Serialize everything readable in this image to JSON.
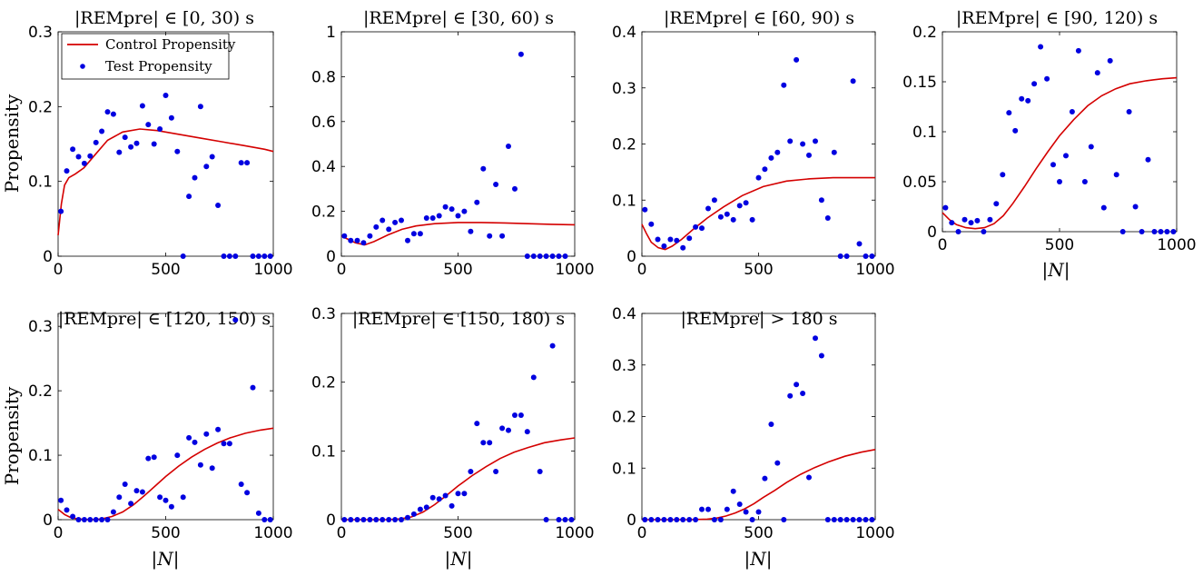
{
  "figure": {
    "colors": {
      "control": "#d40000",
      "test": "#0000e0"
    },
    "legend": {
      "control_label": "Control Propensity",
      "test_label": "Test Propensity",
      "placement": "top-left of first panel"
    }
  },
  "chart_data": [
    {
      "type": "scatter+line",
      "title": "|REMpre| ∈ [0, 30) s",
      "xlabel": "",
      "ylabel": "Propensity",
      "xlim": [
        0,
        1000
      ],
      "ylim": [
        0,
        0.3
      ],
      "xticks": [
        0,
        500,
        1000
      ],
      "yticks": [
        0,
        0.1,
        0.2,
        0.3
      ],
      "ytick_labels": [
        "0",
        "0.1",
        "0.2",
        "0.3"
      ],
      "test_x": [
        13,
        40,
        68,
        95,
        122,
        149,
        176,
        203,
        230,
        257,
        284,
        311,
        338,
        365,
        392,
        419,
        446,
        473,
        500,
        527,
        554,
        581,
        608,
        635,
        662,
        689,
        716,
        743,
        770,
        797,
        824,
        851,
        878,
        905,
        932,
        959,
        986
      ],
      "test_y": [
        0.06,
        0.114,
        0.143,
        0.133,
        0.124,
        0.134,
        0.152,
        0.167,
        0.193,
        0.19,
        0.139,
        0.159,
        0.146,
        0.151,
        0.201,
        0.176,
        0.15,
        0.17,
        0.215,
        0.185,
        0.14,
        0,
        0.08,
        0.105,
        0.2,
        0.12,
        0.133,
        0.068,
        0,
        0,
        0,
        0.125,
        0.125,
        0,
        0,
        0,
        0
      ],
      "test_x_trim": [
        13,
        40,
        68,
        95,
        122,
        149,
        176,
        203,
        230,
        257,
        284,
        311,
        338,
        365,
        392,
        419,
        446,
        473,
        500,
        527,
        554,
        581,
        608,
        635,
        662,
        689,
        716,
        743,
        770,
        797,
        824,
        851,
        878
      ],
      "control_x": [
        0,
        15,
        30,
        50,
        80,
        120,
        170,
        230,
        300,
        380,
        460,
        560,
        660,
        760,
        860,
        960,
        1000
      ],
      "control_y": [
        0.028,
        0.07,
        0.095,
        0.105,
        0.11,
        0.118,
        0.135,
        0.155,
        0.166,
        0.17,
        0.168,
        0.163,
        0.158,
        0.153,
        0.148,
        0.143,
        0.14
      ]
    },
    {
      "type": "scatter+line",
      "title": "|REMpre| ∈ [30, 60) s",
      "xlabel": "",
      "ylabel": "",
      "xlim": [
        0,
        1000
      ],
      "ylim": [
        0,
        1
      ],
      "xticks": [
        0,
        500,
        1000
      ],
      "yticks": [
        0,
        0.2,
        0.4,
        0.6,
        0.8,
        1
      ],
      "ytick_labels": [
        "0",
        "0.2",
        "0.4",
        "0.6",
        "0.8",
        "1"
      ],
      "test_x": [
        13,
        40,
        68,
        95,
        122,
        149,
        176,
        203,
        230,
        257,
        284,
        311,
        338,
        365,
        392,
        419,
        446,
        473,
        500,
        527,
        554,
        581,
        608,
        635,
        662,
        689,
        716,
        743,
        770,
        797,
        824,
        851,
        878,
        905,
        932,
        959
      ],
      "test_y": [
        0.09,
        0.07,
        0.07,
        0.06,
        0.09,
        0.13,
        0.16,
        0.12,
        0.15,
        0.16,
        0.07,
        0.1,
        0.1,
        0.17,
        0.17,
        0.18,
        0.22,
        0.21,
        0.18,
        0.2,
        0.11,
        0.24,
        0.39,
        0.09,
        0.32,
        0.09,
        0.49,
        0.3,
        0.9,
        0,
        0,
        0,
        0,
        0,
        0,
        0
      ],
      "control_x": [
        0,
        30,
        60,
        100,
        140,
        200,
        260,
        320,
        400,
        500,
        600,
        700,
        800,
        900,
        1000
      ],
      "control_y": [
        0.09,
        0.075,
        0.06,
        0.05,
        0.065,
        0.095,
        0.12,
        0.135,
        0.145,
        0.15,
        0.15,
        0.148,
        0.145,
        0.142,
        0.14
      ]
    },
    {
      "type": "scatter+line",
      "title": "|REMpre| ∈ [60, 90) s",
      "xlabel": "",
      "ylabel": "",
      "xlim": [
        0,
        1000
      ],
      "ylim": [
        0,
        0.4
      ],
      "xticks": [
        0,
        500,
        1000
      ],
      "yticks": [
        0,
        0.1,
        0.2,
        0.3,
        0.4
      ],
      "ytick_labels": [
        "0",
        "0.1",
        "0.2",
        "0.3",
        "0.4"
      ],
      "test_x": [
        13,
        40,
        68,
        95,
        122,
        149,
        176,
        203,
        230,
        257,
        284,
        311,
        338,
        365,
        392,
        419,
        446,
        473,
        500,
        527,
        554,
        581,
        608,
        635,
        662,
        689,
        716,
        743,
        770,
        797,
        824,
        851,
        878,
        905,
        932,
        959,
        986
      ],
      "test_y": [
        0.083,
        0.057,
        0.03,
        0.018,
        0.03,
        0.028,
        0.015,
        0.032,
        0.052,
        0.05,
        0.085,
        0.1,
        0.07,
        0.075,
        0.065,
        0.09,
        0.095,
        0.065,
        0.14,
        0.155,
        0.175,
        0.185,
        0.305,
        0.205,
        0.35,
        0.2,
        0.18,
        0.205,
        0.1,
        0.068,
        0.185,
        0,
        0,
        0.312,
        0.022,
        0,
        0
      ],
      "control_x": [
        0,
        20,
        40,
        70,
        100,
        130,
        170,
        220,
        280,
        350,
        430,
        520,
        620,
        720,
        820,
        920,
        1000
      ],
      "control_y": [
        0.057,
        0.04,
        0.025,
        0.015,
        0.012,
        0.018,
        0.03,
        0.048,
        0.068,
        0.088,
        0.108,
        0.124,
        0.134,
        0.138,
        0.14,
        0.14,
        0.14
      ]
    },
    {
      "type": "scatter+line",
      "title": "|REMpre| ∈ [90, 120) s",
      "xlabel": "|N|",
      "ylabel": "",
      "xlim": [
        0,
        1000
      ],
      "ylim": [
        0,
        0.2
      ],
      "xticks": [
        0,
        500,
        1000
      ],
      "yticks": [
        0,
        0.05,
        0.1,
        0.15,
        0.2
      ],
      "ytick_labels": [
        "0",
        "0.05",
        "0.1",
        "0.15",
        "0.2"
      ],
      "test_x": [
        13,
        40,
        68,
        95,
        122,
        149,
        176,
        203,
        230,
        257,
        284,
        311,
        338,
        365,
        392,
        419,
        446,
        473,
        500,
        527,
        554,
        581,
        608,
        635,
        662,
        689,
        716,
        743,
        770,
        797,
        824,
        851,
        878,
        905,
        932,
        959,
        986
      ],
      "test_y": [
        0.024,
        0.009,
        0,
        0.012,
        0.009,
        0.011,
        0,
        0.012,
        0.028,
        0.057,
        0.119,
        0.101,
        0.133,
        0.131,
        0.148,
        0.185,
        0.153,
        0.067,
        0.05,
        0.076,
        0.12,
        0.181,
        0.05,
        0.085,
        0.159,
        0.024,
        0.171,
        0.057,
        0,
        0.12,
        0.025,
        0,
        0.072,
        0,
        0,
        0,
        0
      ],
      "control_x": [
        0,
        30,
        60,
        100,
        140,
        180,
        220,
        260,
        300,
        350,
        400,
        450,
        500,
        560,
        620,
        680,
        740,
        800,
        870,
        940,
        1000
      ],
      "control_y": [
        0.019,
        0.012,
        0.007,
        0.004,
        0.003,
        0.004,
        0.008,
        0.016,
        0.028,
        0.045,
        0.063,
        0.08,
        0.096,
        0.112,
        0.126,
        0.136,
        0.143,
        0.148,
        0.151,
        0.153,
        0.154
      ]
    },
    {
      "type": "scatter+line",
      "title": "|REMpre| ∈ [120, 150) s",
      "xlabel": "|N|",
      "ylabel": "Propensity",
      "xlim": [
        0,
        1000
      ],
      "ylim": [
        0,
        0.32
      ],
      "xticks": [
        0,
        500,
        1000
      ],
      "yticks": [
        0,
        0.1,
        0.2,
        0.3
      ],
      "ytick_labels": [
        "0",
        "0.1",
        "0.2",
        "0.3"
      ],
      "test_x": [
        13,
        40,
        68,
        95,
        122,
        149,
        176,
        203,
        230,
        257,
        284,
        311,
        338,
        365,
        392,
        419,
        446,
        473,
        500,
        527,
        554,
        581,
        608,
        635,
        662,
        689,
        716,
        743,
        770,
        797,
        824,
        851,
        878,
        905,
        932,
        959,
        986
      ],
      "test_y": [
        0.03,
        0.015,
        0.005,
        0,
        0,
        0,
        0,
        0,
        0,
        0.012,
        0.035,
        0.055,
        0.025,
        0.045,
        0.043,
        0.095,
        0.097,
        0.035,
        0.03,
        0.02,
        0.1,
        0.035,
        0.127,
        0.12,
        0.085,
        0.133,
        0.08,
        0.14,
        0.118,
        0.118,
        0.31,
        0.055,
        0.042,
        0.205,
        0.01,
        0,
        0
      ],
      "control_x": [
        0,
        30,
        60,
        100,
        150,
        200,
        250,
        300,
        350,
        400,
        450,
        500,
        560,
        620,
        680,
        740,
        800,
        870,
        940,
        1000
      ],
      "control_y": [
        0.016,
        0.008,
        0.003,
        0.001,
        0,
        0.001,
        0.005,
        0.012,
        0.023,
        0.037,
        0.052,
        0.067,
        0.083,
        0.097,
        0.109,
        0.119,
        0.127,
        0.134,
        0.139,
        0.142
      ]
    },
    {
      "type": "scatter+line",
      "title": "|REMpre| ∈ [150, 180) s",
      "xlabel": "|N|",
      "ylabel": "",
      "xlim": [
        0,
        1000
      ],
      "ylim": [
        0,
        0.3
      ],
      "xticks": [
        0,
        500,
        1000
      ],
      "yticks": [
        0,
        0.1,
        0.2,
        0.3
      ],
      "ytick_labels": [
        "0",
        "0.1",
        "0.2",
        "0.3"
      ],
      "test_x": [
        13,
        40,
        68,
        95,
        122,
        149,
        176,
        203,
        230,
        257,
        284,
        311,
        338,
        365,
        392,
        419,
        446,
        473,
        500,
        527,
        554,
        581,
        608,
        635,
        662,
        689,
        716,
        743,
        770,
        797,
        824,
        851,
        878,
        905,
        932,
        959,
        986
      ],
      "test_y": [
        0,
        0,
        0,
        0,
        0,
        0,
        0,
        0,
        0,
        0,
        0.003,
        0.008,
        0.015,
        0.018,
        0.032,
        0.03,
        0.035,
        0.02,
        0.038,
        0.038,
        0.07,
        0.14,
        0.112,
        0.112,
        0.07,
        0.133,
        0.13,
        0.152,
        0.152,
        0.128,
        0.207,
        0.07,
        0,
        0.253,
        0,
        0,
        0
      ],
      "control_x": [
        0,
        100,
        200,
        250,
        300,
        350,
        400,
        450,
        500,
        560,
        620,
        680,
        740,
        800,
        870,
        940,
        1000
      ],
      "control_y": [
        0,
        0,
        0,
        0.001,
        0.004,
        0.011,
        0.022,
        0.035,
        0.049,
        0.064,
        0.077,
        0.089,
        0.098,
        0.105,
        0.112,
        0.116,
        0.119
      ]
    },
    {
      "type": "scatter+line",
      "title": "|REMpre| > 180 s",
      "xlabel": "|N|",
      "ylabel": "",
      "xlim": [
        0,
        1000
      ],
      "ylim": [
        0,
        0.4
      ],
      "xticks": [
        0,
        500,
        1000
      ],
      "yticks": [
        0,
        0.1,
        0.2,
        0.3,
        0.4
      ],
      "ytick_labels": [
        "0",
        "0.1",
        "0.2",
        "0.3",
        "0.4"
      ],
      "test_x": [
        13,
        40,
        68,
        95,
        122,
        149,
        176,
        203,
        230,
        257,
        284,
        311,
        338,
        365,
        392,
        419,
        446,
        473,
        500,
        527,
        554,
        581,
        608,
        635,
        662,
        689,
        716,
        743,
        770,
        797,
        824,
        851,
        878,
        905,
        932,
        959,
        986
      ],
      "test_y": [
        0,
        0,
        0,
        0,
        0,
        0,
        0,
        0,
        0,
        0.02,
        0.02,
        0,
        0,
        0.02,
        0.055,
        0.03,
        0.015,
        0,
        0.015,
        0.08,
        0.185,
        0.11,
        0,
        0.24,
        0.262,
        0.245,
        0.082,
        0.352,
        0.318,
        0,
        0,
        0,
        0,
        0,
        0,
        0,
        0
      ],
      "control_x": [
        0,
        200,
        280,
        320,
        360,
        400,
        440,
        480,
        520,
        570,
        620,
        680,
        740,
        800,
        870,
        940,
        1000
      ],
      "control_y": [
        0,
        0,
        0.001,
        0.003,
        0.007,
        0.013,
        0.021,
        0.031,
        0.043,
        0.057,
        0.072,
        0.088,
        0.101,
        0.112,
        0.123,
        0.131,
        0.136
      ]
    }
  ]
}
